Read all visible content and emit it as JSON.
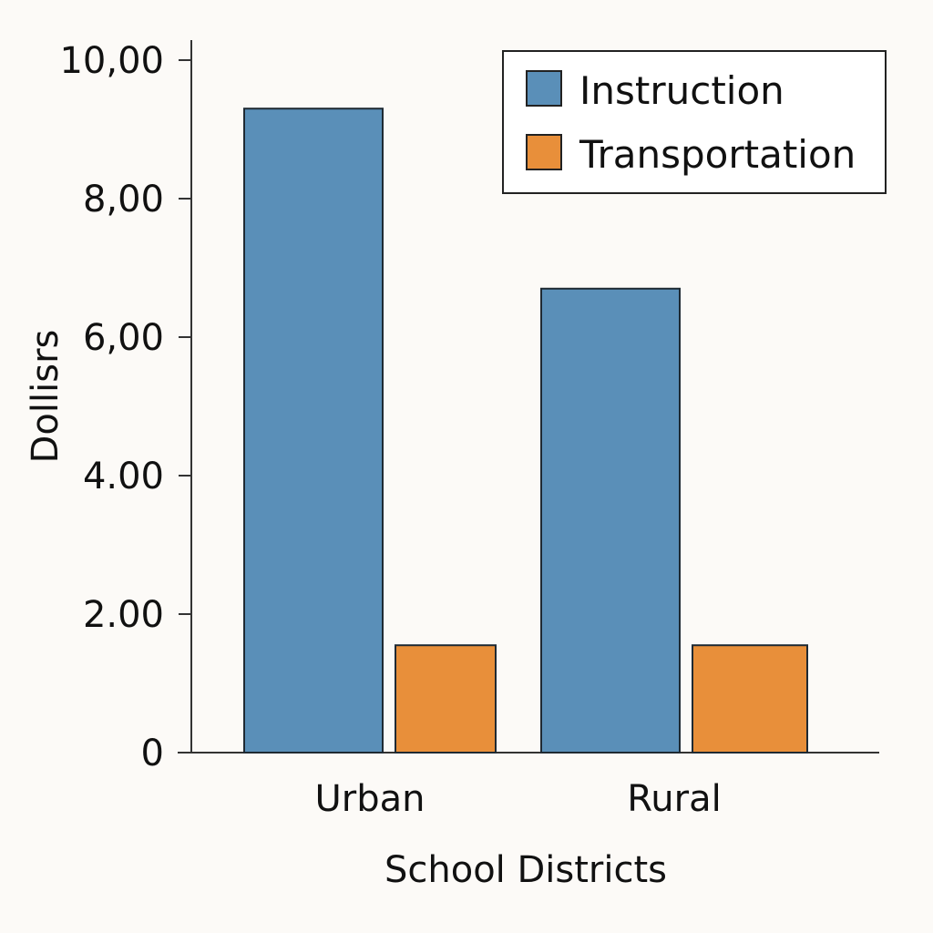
{
  "chart_data": {
    "type": "bar",
    "title": "",
    "xlabel": "School Districts",
    "ylabel": "Dollisrs",
    "ylim": [
      0,
      10
    ],
    "y_tick_values": [
      0,
      2,
      4,
      6,
      8,
      10
    ],
    "y_tick_labels": [
      "0",
      "2.00",
      "4.00",
      "6,00",
      "8,00",
      "10,00"
    ],
    "categories": [
      "Urban",
      "Rural"
    ],
    "series": [
      {
        "name": "Instruction",
        "color": "#5a8fb8",
        "values": [
          9.3,
          6.7
        ]
      },
      {
        "name": "Transportation",
        "color": "#e88f3a",
        "values": [
          1.55,
          1.55
        ]
      }
    ],
    "legend_position": "top-right",
    "grid": false
  }
}
